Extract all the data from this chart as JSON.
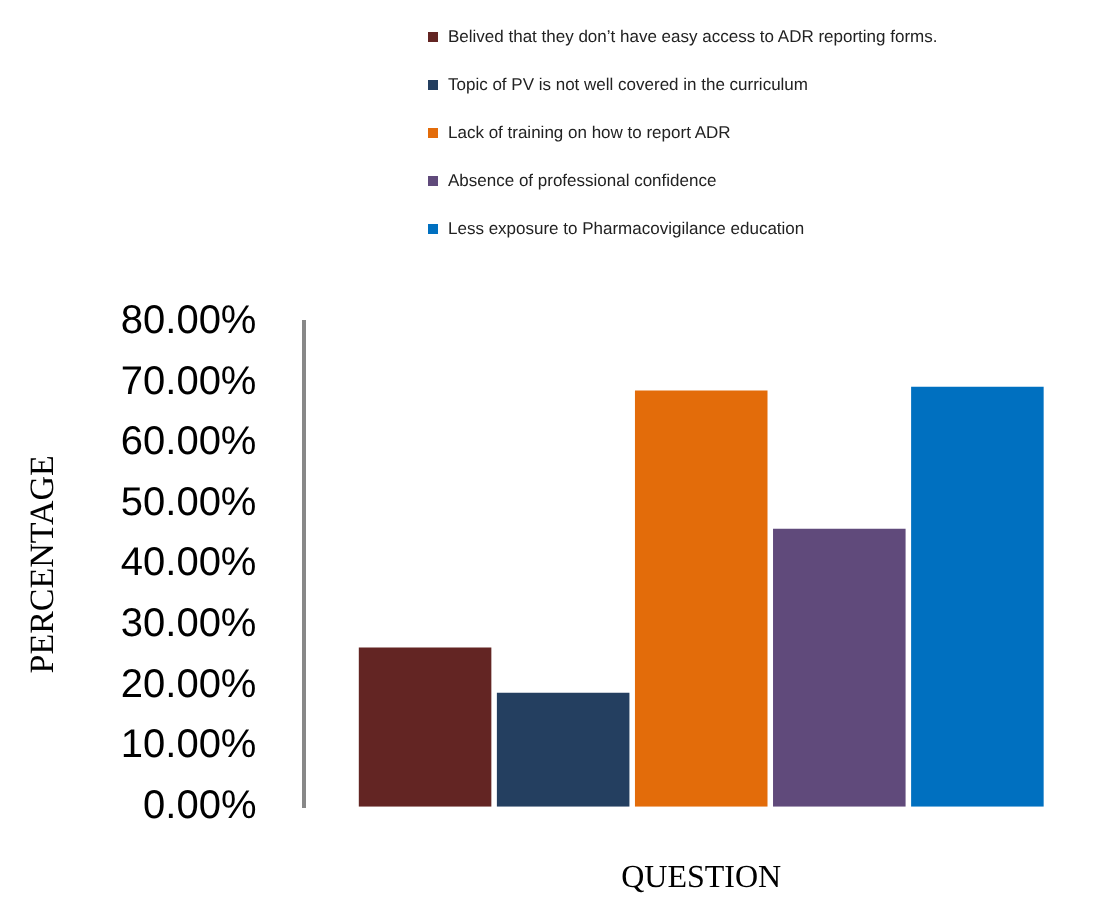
{
  "chart_data": {
    "type": "bar",
    "xlabel": "QUESTION",
    "ylabel": "PERCENTAGE",
    "categories": [
      null
    ],
    "series": [
      {
        "name": "Belived that they don’t have easy access to ADR reporting forms.",
        "color": "#632523",
        "values": [
          26.3
        ]
      },
      {
        "name": "Topic of PV is not well covered in the curriculum",
        "color": "#243f60",
        "values": [
          18.8
        ]
      },
      {
        "name": "Lack of training on how to report ADR",
        "color": "#e36c0a",
        "values": [
          68.7
        ]
      },
      {
        "name": "Absence of professional confidence",
        "color": "#604a7b",
        "values": [
          45.9
        ]
      },
      {
        "name": "Less exposure to Pharmacovigilance education",
        "color": "#0070c0",
        "values": [
          69.3
        ]
      }
    ],
    "ylim": [
      0,
      80
    ],
    "yticks": [
      {
        "value": 0,
        "label": "0.00%"
      },
      {
        "value": 10,
        "label": "10.00%"
      },
      {
        "value": 20,
        "label": "20.00%"
      },
      {
        "value": 30,
        "label": "30.00%"
      },
      {
        "value": 40,
        "label": "40.00%"
      },
      {
        "value": 50,
        "label": "50.00%"
      },
      {
        "value": 60,
        "label": "60.00%"
      },
      {
        "value": 70,
        "label": "70.00%"
      },
      {
        "value": 80,
        "label": "80.00%"
      }
    ],
    "grid": false,
    "legend": "top"
  }
}
